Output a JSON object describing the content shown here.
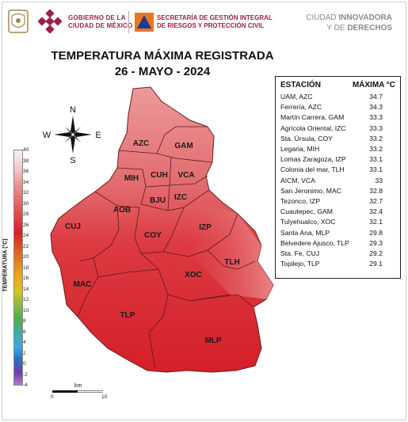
{
  "header": {
    "gov_text": "GOBIERNO DE LA\nCIUDAD DE MÉXICO",
    "sgirpc_text": "SECRETARÍA DE GESTIÓN INTEGRAL\nDE RIESGOS Y PROTECCIÓN CIVIL",
    "right_line1_normal": "CIUDAD ",
    "right_line1_bold": "INNOVADORA",
    "right_line2_normal": "Y DE ",
    "right_line2_bold": "DERECHOS"
  },
  "title": {
    "line1": "TEMPERATURA MÁXIMA REGISTRADA",
    "line2": "26 - MAYO - 2024"
  },
  "compass": {
    "n": "N",
    "s": "S",
    "e": "E",
    "w": "W"
  },
  "districts": [
    {
      "id": "AZC",
      "label": "AZC"
    },
    {
      "id": "GAM",
      "label": "GAM"
    },
    {
      "id": "MIH",
      "label": "MIH"
    },
    {
      "id": "CUH",
      "label": "CUH"
    },
    {
      "id": "VCA",
      "label": "VCA"
    },
    {
      "id": "BJU",
      "label": "BJU"
    },
    {
      "id": "IZC",
      "label": "IZC"
    },
    {
      "id": "AOB",
      "label": "AOB"
    },
    {
      "id": "CUJ",
      "label": "CUJ"
    },
    {
      "id": "COY",
      "label": "COY"
    },
    {
      "id": "IZP",
      "label": "IZP"
    },
    {
      "id": "TLH",
      "label": "TLH"
    },
    {
      "id": "XOC",
      "label": "XOC"
    },
    {
      "id": "MAC",
      "label": "MAC"
    },
    {
      "id": "TLP",
      "label": "TLP"
    },
    {
      "id": "MLP",
      "label": "MLP"
    }
  ],
  "table": {
    "header_station": "ESTACIÓN",
    "header_max": "MÁXIMA °C",
    "rows": [
      {
        "station": "UAM, AZC",
        "value": "34.7"
      },
      {
        "station": "Ferrería, AZC",
        "value": "34.3"
      },
      {
        "station": "Martín Carrera, GAM",
        "value": "33.3"
      },
      {
        "station": "Agrícola Oriental, IZC",
        "value": "33.3"
      },
      {
        "station": "Sta. Úrsula, COY",
        "value": "33.2"
      },
      {
        "station": "Legaria, MIH",
        "value": "33.2"
      },
      {
        "station": "Lomas Zaragoza, IZP",
        "value": "33.1"
      },
      {
        "station": "Colonia del mar, TLH",
        "value": "33.1"
      },
      {
        "station": "AICM, VCA",
        "value": "33"
      },
      {
        "station": "San Jeronimo, MAC",
        "value": "32.8"
      },
      {
        "station": "Tezonco, IZP",
        "value": "32.7"
      },
      {
        "station": "Cuautepec, GAM",
        "value": "32.4"
      },
      {
        "station": "Tulyehualco, XOC",
        "value": "32.1"
      },
      {
        "station": "Santa Ana, MLP",
        "value": "29.8"
      },
      {
        "station": "Belvedere Ajusco, TLP",
        "value": "29.3"
      },
      {
        "station": "Sta. Fe, CUJ",
        "value": "29.2"
      },
      {
        "station": "Topilejo, TLP",
        "value": "29.1"
      }
    ]
  },
  "colorbar": {
    "title": "TEMPERATURA (°C)",
    "ticks": [
      "40",
      "38",
      "36",
      "34",
      "32",
      "30",
      "28",
      "26",
      "24",
      "22",
      "20",
      "18",
      "16",
      "14",
      "12",
      "10",
      "8",
      "6",
      "4",
      "2",
      "0",
      "-2",
      "-4"
    ]
  },
  "scalebar": {
    "label": "km",
    "start": "0",
    "end": "10"
  },
  "colors": {
    "brand": "#9b2247",
    "map_hot": "#d8262d",
    "map_warm": "#e8797c"
  }
}
